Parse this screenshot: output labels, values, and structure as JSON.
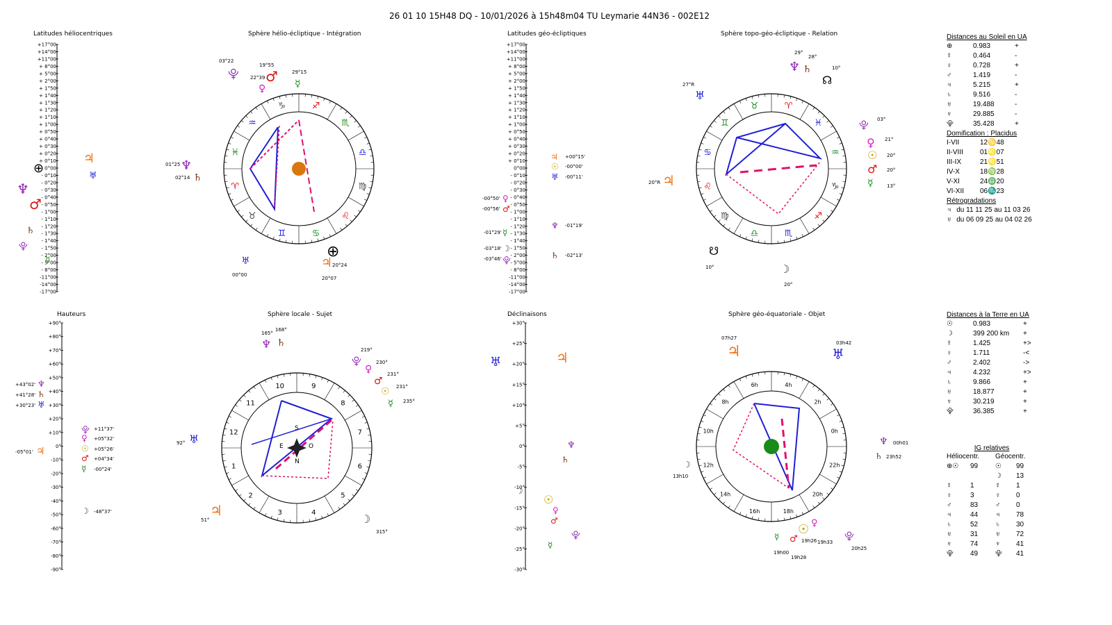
{
  "header": {
    "title": "26 01 10 15H48 DQ   -  10/01/2026 à 15h48m04 TU  Leymarie  44N36 - 002E12"
  },
  "panels": {
    "lat_helio": "Latitudes héliocentriques",
    "sphere_helio": "Sphère hélio-écliptique - Intégration",
    "lat_geo": "Latitudes géo-écliptiques",
    "sphere_topo": "Sphère topo-géo-écliptique - Relation",
    "hauteurs": "Hauteurs",
    "sphere_locale": "Sphère locale - Sujet",
    "declinaisons": "Déclinaisons",
    "sphere_equat": "Sphère géo-équatoriale - Objet"
  },
  "lat_ticks": [
    "+17°00",
    "+14°00",
    "+11°00",
    "+ 8°00",
    "+ 5°00",
    "+ 2°00",
    "+ 1°50",
    "+ 1°40",
    "+ 1°30",
    "+ 1°20",
    "+ 1°10",
    "+ 1°00",
    "+ 0°50",
    "+ 0°40",
    "+ 0°30",
    "+ 0°20",
    "+ 0°10",
    "0°00",
    "- 0°10",
    "- 0°20",
    "- 0°30",
    "- 0°40",
    "- 0°50",
    "- 1°00",
    "- 1°10",
    "- 1°20",
    "- 1°30",
    "- 1°40",
    "- 1°50",
    "- 2°00",
    "- 5°00",
    "- 8°00",
    "-11°00",
    "-14°00",
    "-17°00"
  ],
  "haut_ticks": [
    "+90°",
    "+80°",
    "+70°",
    "+60°",
    "+50°",
    "+40°",
    "+30°",
    "+20°",
    "+10°",
    "0°",
    "-10°",
    "-20°",
    "-30°",
    "-40°",
    "-50°",
    "-60°",
    "-70°",
    "-80°",
    "-90°"
  ],
  "decl_ticks": [
    "+30°",
    "+25°",
    "+20°",
    "+15°",
    "+10°",
    "+5°",
    "0°",
    "-5°",
    "-10°",
    "-15°",
    "-20°",
    "-25°",
    "-30°"
  ],
  "helio_labels": {
    "l1": "01°25",
    "l2": "02°14",
    "l3": "03°22",
    "l4": "19°55",
    "l5": "22°39",
    "l6": "29°15",
    "l7": "00°00",
    "l8": "20°24",
    "l9": "20°07"
  },
  "geo_lat_labels": {
    "a": "+00°15'",
    "b": "-00°00'",
    "c": "-00°11'",
    "d": "-00°50'",
    "e": "-00°56'",
    "f": "-01°19'",
    "g": "-01°29'",
    "h": "-03°18'",
    "i": "-03°46'",
    "j": "-02°13'"
  },
  "topo_labels": {
    "a": "29°",
    "b": "28°",
    "c": "10°",
    "d": "27°R",
    "e": "03°",
    "f": "21°",
    "g": "20°",
    "h": "20°",
    "i": "13°",
    "j": "20°R",
    "k": "10°",
    "l": "20°"
  },
  "haut_labels": {
    "a": "+43°02'",
    "b": "+41°28'",
    "c": "+30°23'",
    "d": "-05°01'",
    "e": "+11°37'",
    "f": "+05°32'",
    "g": "+05°26'",
    "h": "+04°34'",
    "i": "-00°24'",
    "j": "-48°37'"
  },
  "locale_labels": {
    "a": "165°",
    "b": "168°",
    "c": "219°",
    "d": "230°",
    "e": "231°",
    "f": "231°",
    "g": "235°",
    "h": "92°",
    "i": "51°",
    "j": "315°",
    "S": "S",
    "E": "E",
    "O": "O",
    "N": "N"
  },
  "locale_houses": [
    "10",
    "9",
    "8",
    "7",
    "6",
    "5",
    "4",
    "3",
    "2",
    "1",
    "12",
    "11"
  ],
  "equat_labels": {
    "a": "07h27",
    "b": "03h42",
    "c": "00h01",
    "d": "23h52",
    "e": "13h10",
    "f": "19h26",
    "g": "19h33",
    "h": "19h00",
    "i": "19h28",
    "j": "20h25"
  },
  "equat_hours": [
    "6h",
    "4h",
    "2h",
    "0h",
    "22h",
    "20h",
    "18h",
    "16h",
    "14h",
    "12h",
    "10h",
    "8h"
  ],
  "dist_soleil": {
    "title": "Distances au Soleil en UA",
    "rows": [
      [
        "⊕",
        "0.983",
        "+"
      ],
      [
        "☿",
        "0.464",
        "-"
      ],
      [
        "♀",
        "0.728",
        "+"
      ],
      [
        "♂",
        "1.419",
        "-"
      ],
      [
        "♃",
        "5.215",
        "+"
      ],
      [
        "♄",
        "9.516",
        "-"
      ],
      [
        "♅",
        "19.488",
        "-"
      ],
      [
        "♆",
        "29.885",
        "-"
      ],
      [
        "⯓",
        "35.428",
        "+"
      ]
    ]
  },
  "domification": {
    "title": "Domification : Placidus",
    "rows": [
      [
        "I-VII",
        "12♋48"
      ],
      [
        "II-VIII",
        "01♌07"
      ],
      [
        "III-IX",
        "21♌51"
      ],
      [
        "IV-X",
        "18♍28"
      ],
      [
        "V-XI",
        "24♎20"
      ],
      [
        "VI-XII",
        "06♏23"
      ]
    ]
  },
  "retro": {
    "title": "Rétrogradations",
    "rows": [
      [
        "♃",
        "du 11 11 25 au 11 03 26"
      ],
      [
        "♅",
        "du 06 09 25 au 04 02 26"
      ]
    ]
  },
  "dist_terre": {
    "title": "Distances à la Terre en UA",
    "rows": [
      [
        "☉",
        "0.983",
        "+"
      ],
      [
        "☽",
        "399 200 km",
        "+"
      ],
      [
        "☿",
        "1.425",
        "+>"
      ],
      [
        "♀",
        "1.711",
        "-<"
      ],
      [
        "♂",
        "2.402",
        "->"
      ],
      [
        "♃",
        "4.232",
        "+>"
      ],
      [
        "♄",
        "9.866",
        "+"
      ],
      [
        "♅",
        "18.877",
        "+"
      ],
      [
        "♆",
        "30.219",
        "+"
      ],
      [
        "⯓",
        "36.385",
        "+"
      ]
    ]
  },
  "ig": {
    "title": "IG relatives",
    "col1": "Héliocentr.",
    "col2": "Géocentr.",
    "rows": [
      [
        "⊕☉",
        "99",
        "☉",
        "99"
      ],
      [
        "",
        "",
        "☽",
        "13"
      ],
      [
        "☿",
        "1",
        "☿",
        "1"
      ],
      [
        "♀",
        "3",
        "♀",
        "0"
      ],
      [
        "♂",
        "83",
        "♂",
        "0"
      ],
      [
        "♃",
        "44",
        "♃",
        "78"
      ],
      [
        "♄",
        "52",
        "♄",
        "30"
      ],
      [
        "♅",
        "31",
        "♅",
        "72"
      ],
      [
        "♆",
        "74",
        "♆",
        "41"
      ],
      [
        "⯓",
        "49",
        "⯓",
        "41"
      ]
    ]
  },
  "zodiac_helio": [
    "♑",
    "♐",
    "♏",
    "♎",
    "♍",
    "♌",
    "♋",
    "♊",
    "♉",
    "♈",
    "♓",
    "♒"
  ],
  "zodiac_topo": [
    "♉",
    "♈",
    "♓",
    "♒",
    "♑",
    "♐",
    "♏",
    "♎",
    "♍",
    "♌",
    "♋",
    "♊"
  ],
  "colors": {
    "blue": "#1f1fd6",
    "pink": "#e0106a",
    "red": "#e01010",
    "orange": "#f07010",
    "green": "#1a8a1a",
    "purple": "#8b1fb0",
    "brown": "#7a3a10"
  }
}
